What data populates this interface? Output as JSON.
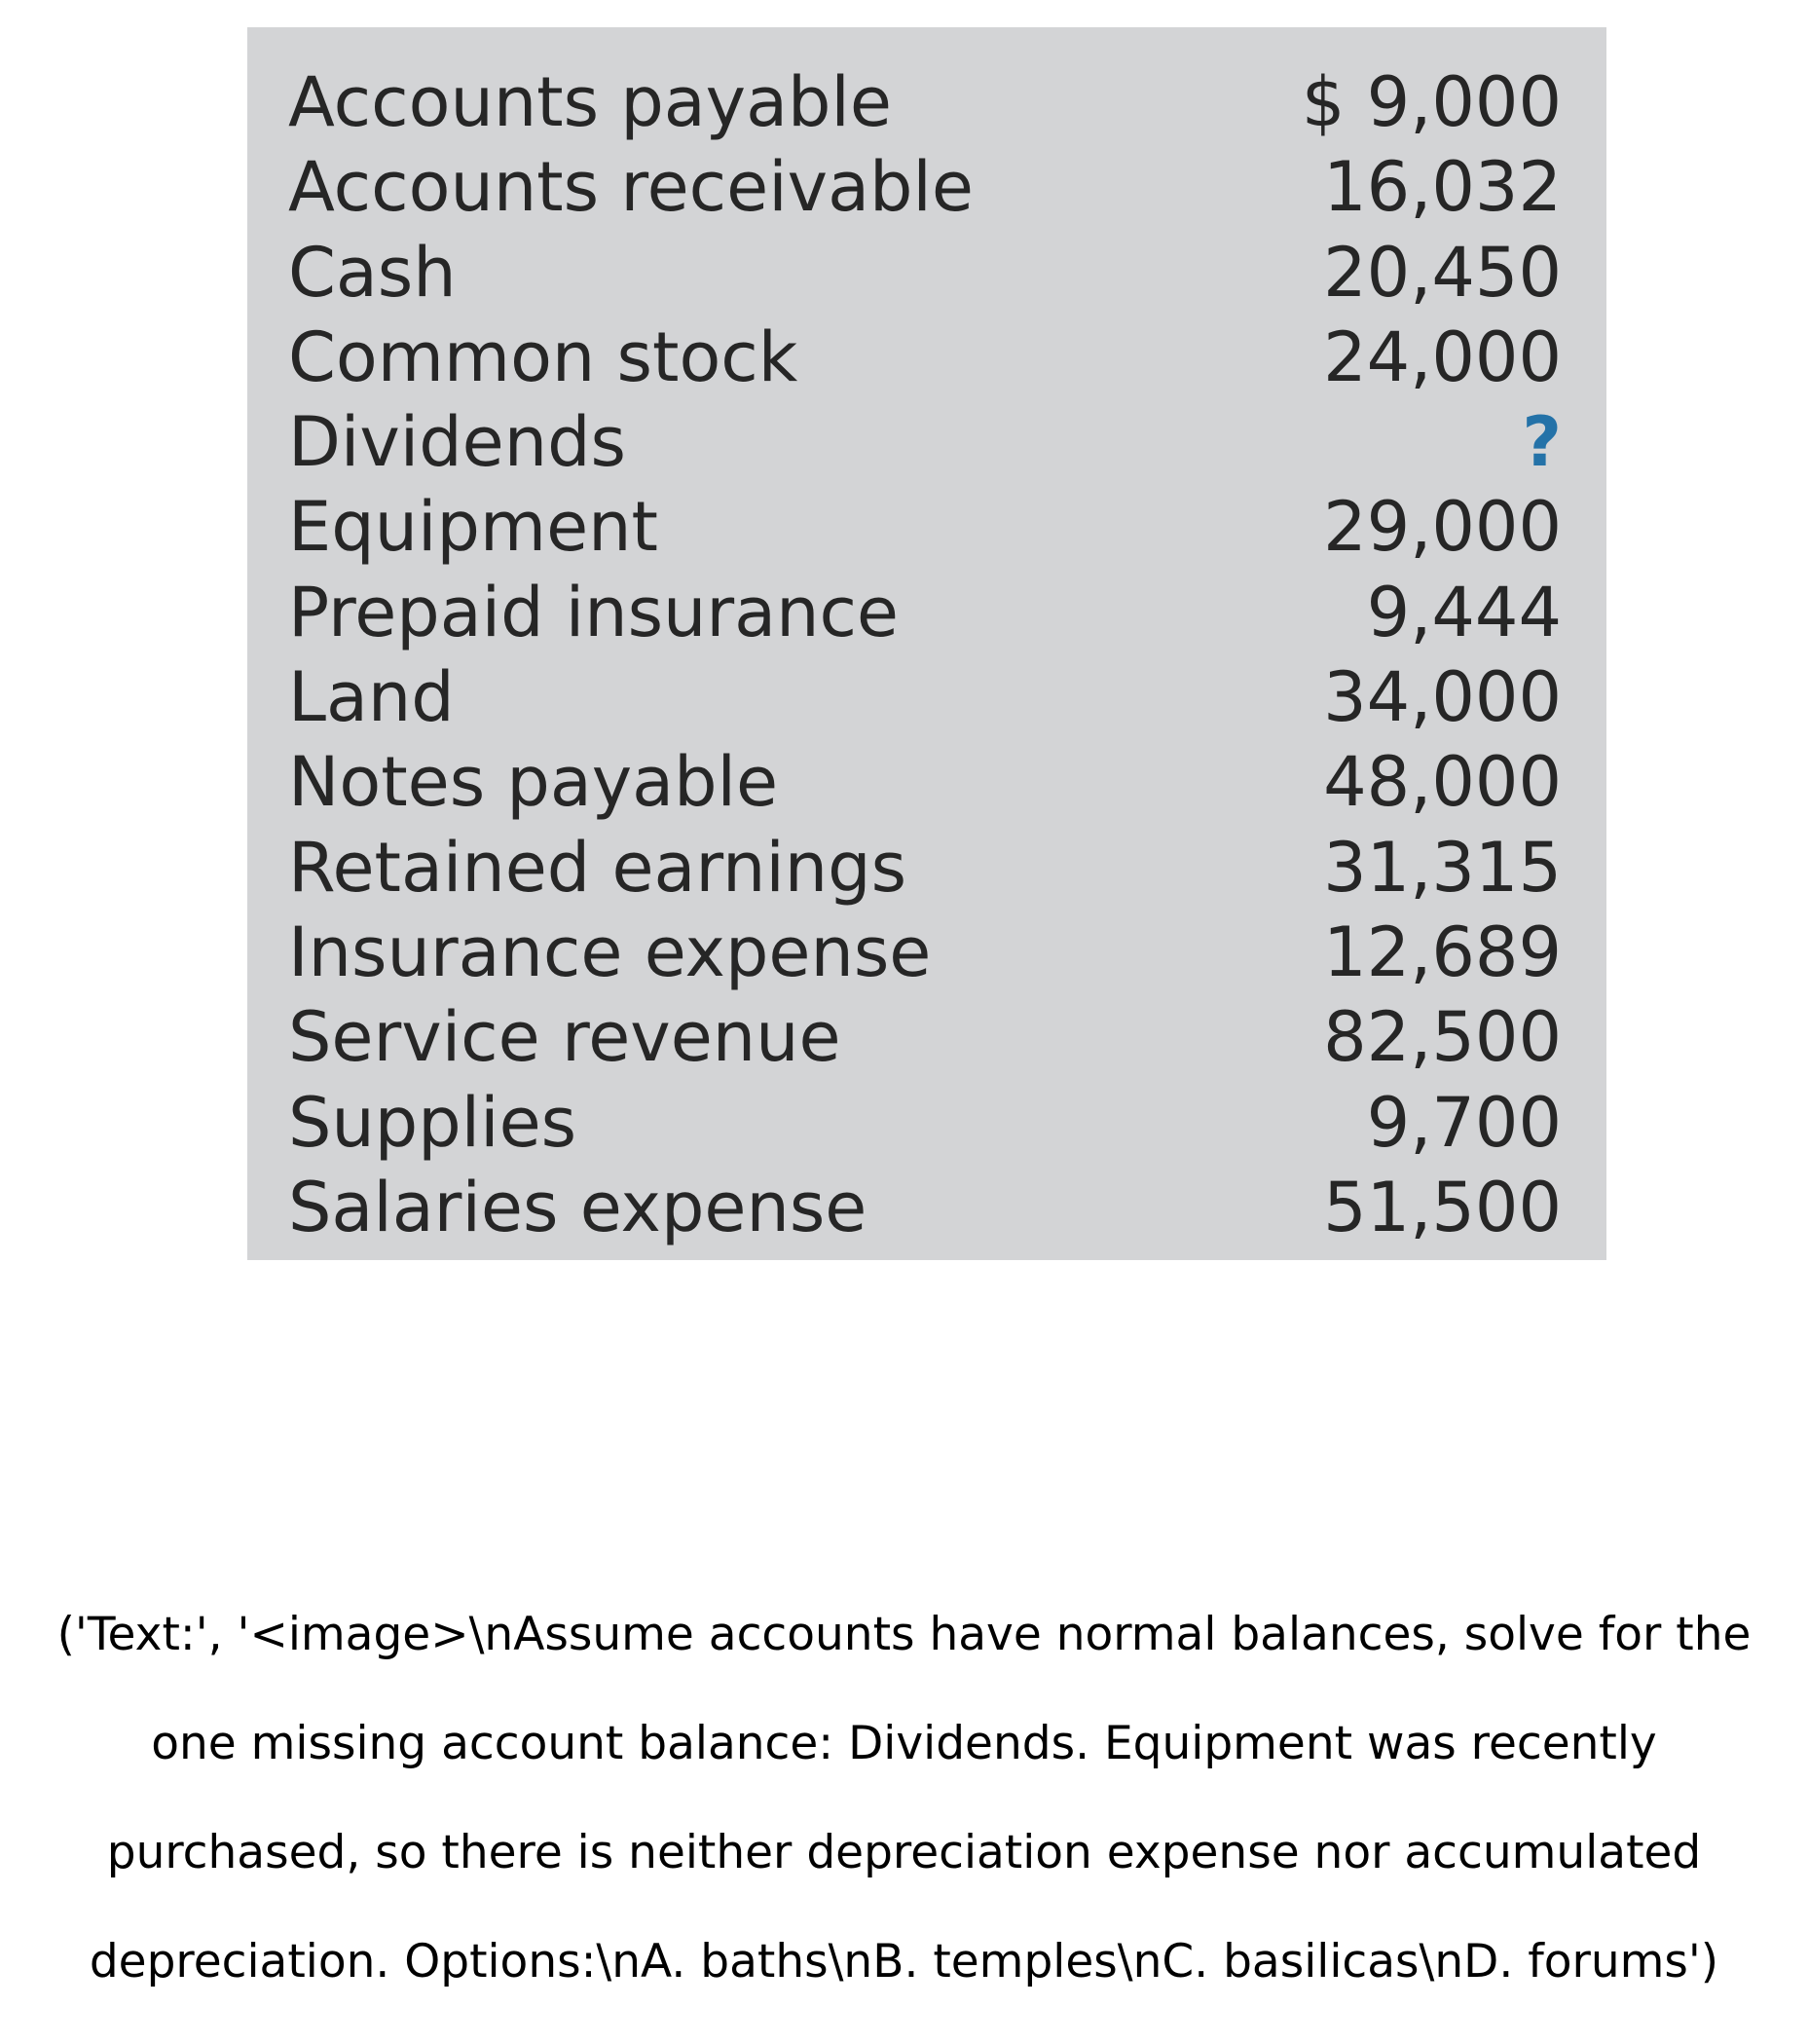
{
  "table": {
    "rows": [
      {
        "name": "Accounts payable",
        "amount": "$  9,000"
      },
      {
        "name": "Accounts receivable",
        "amount": "16,032"
      },
      {
        "name": "Cash",
        "amount": "20,450"
      },
      {
        "name": "Common stock",
        "amount": "24,000"
      },
      {
        "name": "Dividends",
        "amount": "?"
      },
      {
        "name": "Equipment",
        "amount": "29,000"
      },
      {
        "name": "Prepaid insurance",
        "amount": "9,444"
      },
      {
        "name": "Land",
        "amount": "34,000"
      },
      {
        "name": "Notes payable",
        "amount": "48,000"
      },
      {
        "name": "Retained earnings",
        "amount": "31,315"
      },
      {
        "name": "Insurance expense",
        "amount": "12,689"
      },
      {
        "name": "Service revenue",
        "amount": "82,500"
      },
      {
        "name": "Supplies",
        "amount": "9,700"
      },
      {
        "name": "Salaries expense",
        "amount": "51,500"
      }
    ],
    "missing_color": "#2472a8",
    "background_color": "#d3d4d6"
  },
  "question": {
    "lines": [
      "('Text:', '<image>\\nAssume accounts have normal balances, solve for the",
      "one missing account balance: Dividends. Equipment was recently",
      "purchased, so there is neither depreciation expense nor accumulated",
      "depreciation.  Options:\\nA. baths\\nB. temples\\nC. basilicas\\nD. forums')"
    ]
  }
}
